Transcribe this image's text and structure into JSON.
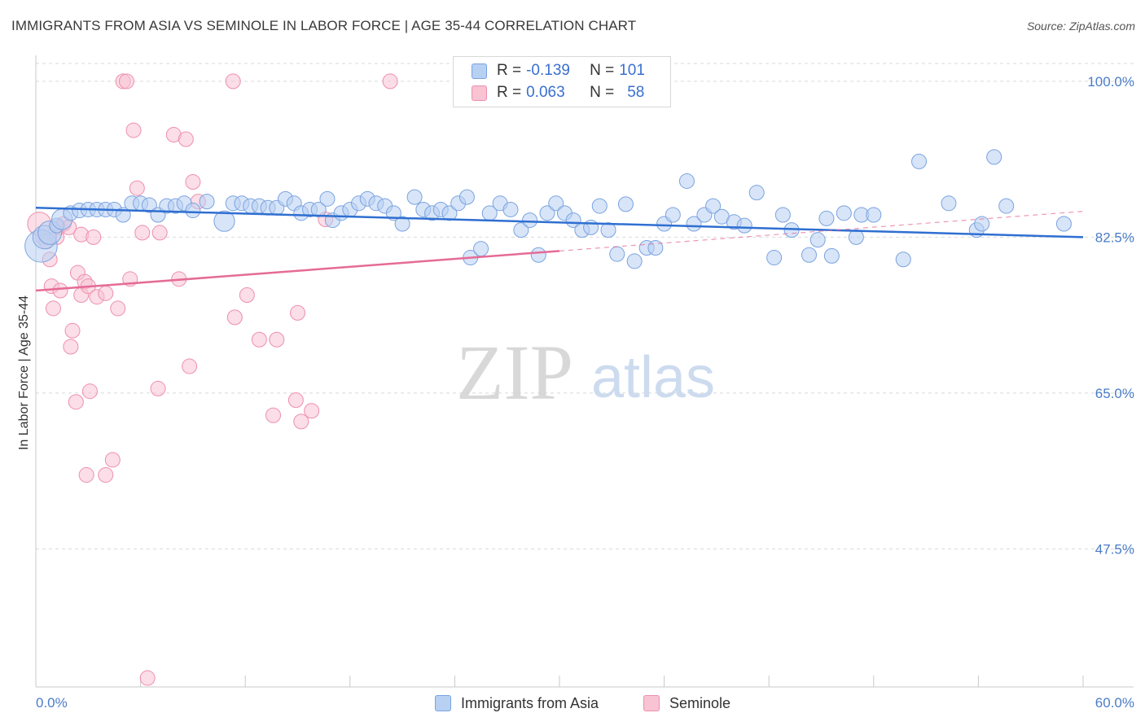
{
  "title": "IMMIGRANTS FROM ASIA VS SEMINOLE IN LABOR FORCE | AGE 35-44 CORRELATION CHART",
  "source": "Source: ZipAtlas.com",
  "watermark": {
    "zip": "ZIP",
    "atlas": "atlas"
  },
  "colors": {
    "blue_fill": "#b8d0f2",
    "blue_stroke": "#7aa3e0",
    "blue_line": "#2f6fd1",
    "pink_fill": "#f8c3d3",
    "pink_stroke": "#ee8fae",
    "pink_line": "#e56b96",
    "tick_text": "#4a7cc7",
    "grid": "#d9d9d9"
  },
  "legend": {
    "series1": {
      "r_label": "R =",
      "r_value": "-0.139",
      "n_label": "N =",
      "n_value": "101"
    },
    "series2": {
      "r_label": "R =",
      "r_value": "0.063",
      "n_label": "N =",
      "n_value": "58"
    }
  },
  "chart_data": {
    "type": "scatter",
    "title": "IMMIGRANTS FROM ASIA VS SEMINOLE IN LABOR FORCE | AGE 35-44 CORRELATION CHART",
    "xlabel": "",
    "ylabel": "In Labor Force | Age 35-44",
    "xlim": [
      0,
      60
    ],
    "ylim": [
      32,
      102
    ],
    "x_tick_labels": [
      "0.0%",
      "60.0%"
    ],
    "y_ticks": [
      47.5,
      65.0,
      82.5,
      100.0
    ],
    "y_tick_labels": [
      "47.5%",
      "65.0%",
      "82.5%",
      "100.0%"
    ],
    "grid": true,
    "legend_position": "top-center",
    "series": [
      {
        "name": "Immigrants from Asia",
        "r": -0.139,
        "n": 101,
        "trend": {
          "x0": 0,
          "y0": 85.8,
          "x1": 60,
          "y1": 82.5,
          "dashed_from": null
        },
        "points": [
          [
            0.3,
            81.5,
            2.2
          ],
          [
            0.5,
            82.5,
            1.6
          ],
          [
            0.8,
            83.0,
            1.6
          ],
          [
            1.2,
            83.8,
            1.0
          ],
          [
            1.5,
            84.5,
            1.4
          ],
          [
            2.0,
            85.2,
            1.0
          ],
          [
            2.5,
            85.5,
            1.0
          ],
          [
            3.0,
            85.6,
            1.0
          ],
          [
            3.5,
            85.6,
            1.0
          ],
          [
            4.0,
            85.6,
            1.0
          ],
          [
            4.5,
            85.6,
            1.0
          ],
          [
            5.0,
            85.0,
            1.0
          ],
          [
            5.5,
            86.3,
            1.0
          ],
          [
            6.0,
            86.3,
            1.0
          ],
          [
            6.5,
            86.1,
            1.0
          ],
          [
            7.0,
            85.0,
            1.0
          ],
          [
            7.5,
            86.0,
            1.0
          ],
          [
            8.0,
            86.0,
            1.0
          ],
          [
            8.5,
            86.3,
            1.0
          ],
          [
            9.0,
            85.5,
            1.0
          ],
          [
            9.8,
            86.5,
            1.0
          ],
          [
            10.8,
            84.3,
            1.4
          ],
          [
            11.3,
            86.3,
            1.0
          ],
          [
            11.8,
            86.3,
            1.0
          ],
          [
            12.3,
            86.0,
            1.0
          ],
          [
            12.8,
            86.0,
            1.0
          ],
          [
            13.3,
            85.8,
            1.0
          ],
          [
            13.8,
            85.8,
            1.0
          ],
          [
            14.3,
            86.8,
            1.0
          ],
          [
            14.8,
            86.3,
            1.0
          ],
          [
            15.2,
            85.2,
            1.0
          ],
          [
            15.7,
            85.6,
            1.0
          ],
          [
            16.2,
            85.6,
            1.0
          ],
          [
            16.7,
            86.8,
            1.0
          ],
          [
            17.0,
            84.4,
            1.0
          ],
          [
            17.5,
            85.2,
            1.0
          ],
          [
            18.0,
            85.6,
            1.0
          ],
          [
            18.5,
            86.3,
            1.0
          ],
          [
            19.0,
            86.8,
            1.0
          ],
          [
            19.5,
            86.3,
            1.0
          ],
          [
            20.0,
            86.0,
            1.0
          ],
          [
            20.5,
            85.2,
            1.0
          ],
          [
            21.0,
            84.0,
            1.0
          ],
          [
            21.7,
            87.0,
            1.0
          ],
          [
            22.2,
            85.6,
            1.0
          ],
          [
            22.7,
            85.2,
            1.0
          ],
          [
            23.2,
            85.6,
            1.0
          ],
          [
            23.7,
            85.2,
            1.0
          ],
          [
            24.2,
            86.3,
            1.0
          ],
          [
            24.7,
            87.0,
            1.0
          ],
          [
            24.9,
            80.2,
            1.0
          ],
          [
            25.5,
            81.2,
            1.0
          ],
          [
            26.0,
            85.2,
            1.0
          ],
          [
            26.6,
            86.3,
            1.0
          ],
          [
            27.2,
            85.6,
            1.0
          ],
          [
            27.8,
            83.3,
            1.0
          ],
          [
            28.3,
            84.4,
            1.0
          ],
          [
            28.8,
            80.5,
            1.0
          ],
          [
            29.3,
            85.2,
            1.0
          ],
          [
            29.8,
            86.3,
            1.0
          ],
          [
            30.3,
            85.2,
            1.0
          ],
          [
            30.8,
            84.4,
            1.0
          ],
          [
            31.3,
            83.3,
            1.0
          ],
          [
            31.8,
            83.6,
            1.0
          ],
          [
            32.3,
            86.0,
            1.0
          ],
          [
            32.8,
            83.3,
            1.0
          ],
          [
            33.3,
            80.6,
            1.0
          ],
          [
            33.8,
            86.2,
            1.0
          ],
          [
            34.3,
            79.8,
            1.0
          ],
          [
            35.0,
            81.3,
            1.0
          ],
          [
            35.5,
            81.3,
            1.0
          ],
          [
            36.0,
            84.0,
            1.0
          ],
          [
            36.5,
            85.0,
            1.0
          ],
          [
            37.3,
            88.8,
            1.0
          ],
          [
            37.7,
            84.0,
            1.0
          ],
          [
            38.3,
            85.0,
            1.0
          ],
          [
            38.8,
            86.0,
            1.0
          ],
          [
            39.3,
            84.8,
            1.0
          ],
          [
            40.0,
            84.2,
            1.0
          ],
          [
            40.6,
            83.8,
            1.0
          ],
          [
            41.3,
            87.5,
            1.0
          ],
          [
            42.3,
            80.2,
            1.0
          ],
          [
            42.8,
            85.0,
            1.0
          ],
          [
            43.3,
            83.3,
            1.0
          ],
          [
            44.3,
            80.5,
            1.0
          ],
          [
            44.8,
            82.2,
            1.0
          ],
          [
            45.3,
            84.6,
            1.0
          ],
          [
            45.6,
            80.4,
            1.0
          ],
          [
            46.3,
            85.2,
            1.0
          ],
          [
            47.3,
            85.0,
            1.0
          ],
          [
            48.0,
            85.0,
            1.0
          ],
          [
            47.0,
            82.5,
            1.0
          ],
          [
            49.7,
            80.0,
            1.0
          ],
          [
            50.6,
            91.0,
            1.0
          ],
          [
            52.3,
            86.3,
            1.0
          ],
          [
            53.9,
            83.3,
            1.0
          ],
          [
            54.2,
            84.0,
            1.0
          ],
          [
            54.9,
            91.5,
            1.0
          ],
          [
            55.6,
            86.0,
            1.0
          ],
          [
            58.9,
            84.0,
            1.0
          ]
        ]
      },
      {
        "name": "Seminole",
        "r": 0.063,
        "n": 58,
        "trend": {
          "x0": 0,
          "y0": 76.5,
          "x1": 60,
          "y1": 85.4,
          "dashed_from": 30
        },
        "points": [
          [
            0.2,
            84.0,
            1.6
          ],
          [
            0.4,
            82.5,
            1.0
          ],
          [
            0.6,
            82.0,
            1.0
          ],
          [
            0.8,
            80.0,
            1.0
          ],
          [
            0.9,
            77.0,
            1.0
          ],
          [
            1.0,
            74.5,
            1.0
          ],
          [
            1.2,
            82.5,
            1.0
          ],
          [
            1.3,
            83.6,
            1.0
          ],
          [
            1.4,
            76.5,
            1.0
          ],
          [
            1.6,
            84.0,
            1.0
          ],
          [
            1.9,
            83.6,
            1.0
          ],
          [
            2.0,
            70.2,
            1.0
          ],
          [
            2.1,
            72.0,
            1.0
          ],
          [
            2.3,
            64.0,
            1.0
          ],
          [
            2.4,
            78.5,
            1.0
          ],
          [
            2.6,
            76.0,
            1.0
          ],
          [
            2.6,
            82.8,
            1.0
          ],
          [
            2.8,
            77.5,
            1.0
          ],
          [
            2.9,
            55.8,
            1.0
          ],
          [
            3.0,
            77.0,
            1.0
          ],
          [
            3.1,
            65.2,
            1.0
          ],
          [
            3.3,
            82.5,
            1.0
          ],
          [
            3.5,
            75.8,
            1.0
          ],
          [
            4.0,
            76.2,
            1.0
          ],
          [
            4.0,
            55.8,
            1.0
          ],
          [
            4.4,
            57.5,
            1.0
          ],
          [
            4.7,
            74.5,
            1.0
          ],
          [
            5.0,
            100.0,
            1.0
          ],
          [
            5.2,
            100.0,
            1.0
          ],
          [
            5.4,
            77.8,
            1.0
          ],
          [
            5.6,
            94.5,
            1.0
          ],
          [
            5.8,
            88.0,
            1.0
          ],
          [
            6.1,
            83.0,
            1.0
          ],
          [
            6.4,
            33.0,
            1.0
          ],
          [
            7.0,
            65.5,
            1.0
          ],
          [
            7.1,
            83.0,
            1.0
          ],
          [
            7.9,
            94.0,
            1.0
          ],
          [
            8.2,
            77.8,
            1.0
          ],
          [
            8.6,
            93.5,
            1.0
          ],
          [
            8.8,
            68.0,
            1.0
          ],
          [
            9.0,
            88.7,
            1.0
          ],
          [
            9.3,
            86.5,
            1.0
          ],
          [
            11.3,
            100.0,
            1.0
          ],
          [
            11.4,
            73.5,
            1.0
          ],
          [
            12.1,
            76.0,
            1.0
          ],
          [
            12.8,
            71.0,
            1.0
          ],
          [
            13.6,
            62.5,
            1.0
          ],
          [
            13.8,
            71.0,
            1.0
          ],
          [
            14.9,
            64.2,
            1.0
          ],
          [
            15.0,
            74.0,
            1.0
          ],
          [
            15.2,
            61.8,
            1.0
          ],
          [
            15.8,
            63.0,
            1.0
          ],
          [
            16.6,
            84.5,
            1.0
          ],
          [
            20.3,
            100.0,
            1.0
          ]
        ]
      }
    ]
  },
  "bottom_legend": {
    "series1": "Immigrants from Asia",
    "series2": "Seminole"
  }
}
